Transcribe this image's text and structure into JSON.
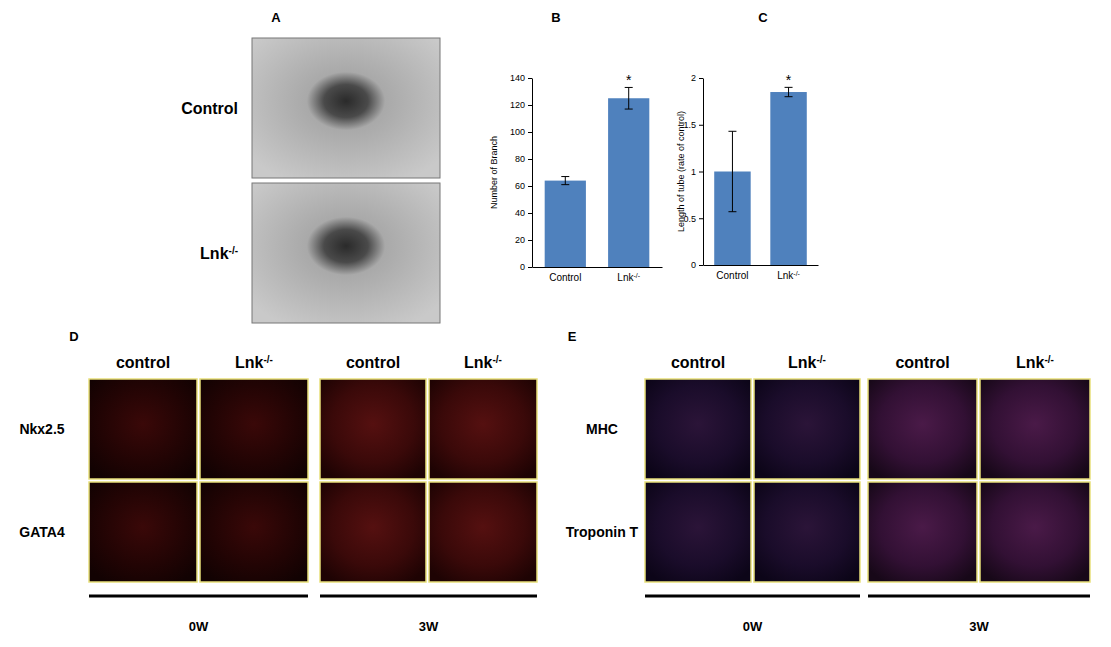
{
  "panel_labels": [
    "A",
    "B",
    "C",
    "D",
    "E"
  ],
  "panel_a": {
    "row_labels": [
      "Control",
      "Lnk-/-"
    ]
  },
  "chart_data": [
    {
      "type": "bar",
      "ylabel": "Number of Branch",
      "categories": [
        "Control",
        "Lnk-/-"
      ],
      "values": [
        64,
        125
      ],
      "errors": [
        3,
        8
      ],
      "color": "#4f81bd",
      "ylim": [
        0,
        140
      ],
      "yticks": [
        0,
        20,
        40,
        60,
        80,
        100,
        120,
        140
      ],
      "annotations": [
        {
          "text": "*",
          "category": "Lnk-/-"
        }
      ]
    },
    {
      "type": "bar",
      "ylabel": "Length of tube (rate of control)",
      "categories": [
        "Control",
        "Lnk-/-"
      ],
      "values": [
        1,
        1.85
      ],
      "errors": [
        0.43,
        0.05
      ],
      "color": "#4f81bd",
      "ylim": [
        0,
        2
      ],
      "yticks": [
        0,
        0.5,
        1,
        1.5,
        2
      ],
      "annotations": [
        {
          "text": "*",
          "category": "Lnk-/-"
        }
      ]
    }
  ],
  "panel_d": {
    "columns": [
      "control",
      "Lnk-/-",
      "control",
      "Lnk-/-"
    ],
    "rows": [
      "Nkx2.5",
      "GATA4"
    ],
    "timepoints": [
      "0W",
      "3W"
    ]
  },
  "panel_e": {
    "columns": [
      "control",
      "Lnk-/-",
      "control",
      "Lnk-/-"
    ],
    "rows": [
      "MHC",
      "Troponin T"
    ],
    "timepoints": [
      "0W",
      "3W"
    ]
  }
}
